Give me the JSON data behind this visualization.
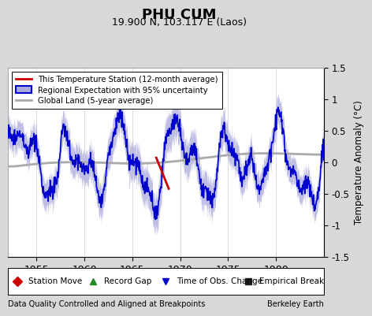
{
  "title": "PHU CUM",
  "subtitle": "19.900 N, 103.117 E (Laos)",
  "ylabel": "Temperature Anomaly (°C)",
  "xlim": [
    1952.0,
    1985.0
  ],
  "ylim": [
    -1.5,
    1.5
  ],
  "xticks": [
    1955,
    1960,
    1965,
    1970,
    1975,
    1980
  ],
  "yticks": [
    -1.5,
    -1.0,
    -0.5,
    0.0,
    0.5,
    1.0,
    1.5
  ],
  "footer_left": "Data Quality Controlled and Aligned at Breakpoints",
  "footer_right": "Berkeley Earth",
  "bg_color": "#d8d8d8",
  "plot_bg_color": "#ffffff",
  "regional_color": "#0000cc",
  "regional_fill_color": "#aaaadd",
  "station_color": "#cc0000",
  "global_color": "#aaaaaa",
  "legend_labels": [
    "This Temperature Station (12-month average)",
    "Regional Expectation with 95% uncertainty",
    "Global Land (5-year average)"
  ],
  "bottom_legend": [
    {
      "label": "Station Move",
      "color": "#cc0000",
      "marker": "D"
    },
    {
      "label": "Record Gap",
      "color": "#228822",
      "marker": "^"
    },
    {
      "label": "Time of Obs. Change",
      "color": "#0000cc",
      "marker": "v"
    },
    {
      "label": "Empirical Break",
      "color": "#222222",
      "marker": "s"
    }
  ]
}
